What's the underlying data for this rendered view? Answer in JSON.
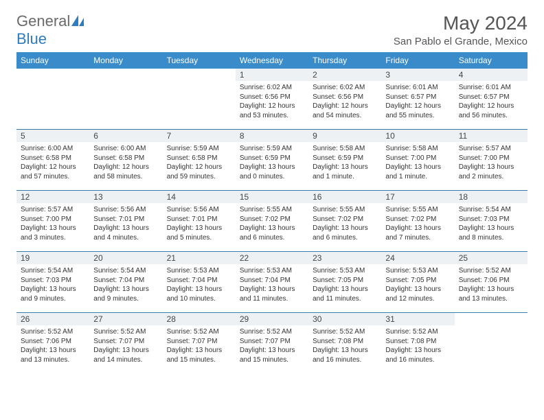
{
  "brand": {
    "part1": "General",
    "part2": "Blue"
  },
  "title": "May 2024",
  "location": "San Pablo el Grande, Mexico",
  "header_bg": "#3a8bc9",
  "daynum_bg": "#eef1f3",
  "rule_color": "#3a7aa8",
  "columns": [
    "Sunday",
    "Monday",
    "Tuesday",
    "Wednesday",
    "Thursday",
    "Friday",
    "Saturday"
  ],
  "weeks": [
    [
      null,
      null,
      null,
      {
        "n": "1",
        "sr": "6:02 AM",
        "ss": "6:56 PM",
        "dl": "12 hours and 53 minutes."
      },
      {
        "n": "2",
        "sr": "6:02 AM",
        "ss": "6:56 PM",
        "dl": "12 hours and 54 minutes."
      },
      {
        "n": "3",
        "sr": "6:01 AM",
        "ss": "6:57 PM",
        "dl": "12 hours and 55 minutes."
      },
      {
        "n": "4",
        "sr": "6:01 AM",
        "ss": "6:57 PM",
        "dl": "12 hours and 56 minutes."
      }
    ],
    [
      {
        "n": "5",
        "sr": "6:00 AM",
        "ss": "6:58 PM",
        "dl": "12 hours and 57 minutes."
      },
      {
        "n": "6",
        "sr": "6:00 AM",
        "ss": "6:58 PM",
        "dl": "12 hours and 58 minutes."
      },
      {
        "n": "7",
        "sr": "5:59 AM",
        "ss": "6:58 PM",
        "dl": "12 hours and 59 minutes."
      },
      {
        "n": "8",
        "sr": "5:59 AM",
        "ss": "6:59 PM",
        "dl": "13 hours and 0 minutes."
      },
      {
        "n": "9",
        "sr": "5:58 AM",
        "ss": "6:59 PM",
        "dl": "13 hours and 1 minute."
      },
      {
        "n": "10",
        "sr": "5:58 AM",
        "ss": "7:00 PM",
        "dl": "13 hours and 1 minute."
      },
      {
        "n": "11",
        "sr": "5:57 AM",
        "ss": "7:00 PM",
        "dl": "13 hours and 2 minutes."
      }
    ],
    [
      {
        "n": "12",
        "sr": "5:57 AM",
        "ss": "7:00 PM",
        "dl": "13 hours and 3 minutes."
      },
      {
        "n": "13",
        "sr": "5:56 AM",
        "ss": "7:01 PM",
        "dl": "13 hours and 4 minutes."
      },
      {
        "n": "14",
        "sr": "5:56 AM",
        "ss": "7:01 PM",
        "dl": "13 hours and 5 minutes."
      },
      {
        "n": "15",
        "sr": "5:55 AM",
        "ss": "7:02 PM",
        "dl": "13 hours and 6 minutes."
      },
      {
        "n": "16",
        "sr": "5:55 AM",
        "ss": "7:02 PM",
        "dl": "13 hours and 6 minutes."
      },
      {
        "n": "17",
        "sr": "5:55 AM",
        "ss": "7:02 PM",
        "dl": "13 hours and 7 minutes."
      },
      {
        "n": "18",
        "sr": "5:54 AM",
        "ss": "7:03 PM",
        "dl": "13 hours and 8 minutes."
      }
    ],
    [
      {
        "n": "19",
        "sr": "5:54 AM",
        "ss": "7:03 PM",
        "dl": "13 hours and 9 minutes."
      },
      {
        "n": "20",
        "sr": "5:54 AM",
        "ss": "7:04 PM",
        "dl": "13 hours and 9 minutes."
      },
      {
        "n": "21",
        "sr": "5:53 AM",
        "ss": "7:04 PM",
        "dl": "13 hours and 10 minutes."
      },
      {
        "n": "22",
        "sr": "5:53 AM",
        "ss": "7:04 PM",
        "dl": "13 hours and 11 minutes."
      },
      {
        "n": "23",
        "sr": "5:53 AM",
        "ss": "7:05 PM",
        "dl": "13 hours and 11 minutes."
      },
      {
        "n": "24",
        "sr": "5:53 AM",
        "ss": "7:05 PM",
        "dl": "13 hours and 12 minutes."
      },
      {
        "n": "25",
        "sr": "5:52 AM",
        "ss": "7:06 PM",
        "dl": "13 hours and 13 minutes."
      }
    ],
    [
      {
        "n": "26",
        "sr": "5:52 AM",
        "ss": "7:06 PM",
        "dl": "13 hours and 13 minutes."
      },
      {
        "n": "27",
        "sr": "5:52 AM",
        "ss": "7:07 PM",
        "dl": "13 hours and 14 minutes."
      },
      {
        "n": "28",
        "sr": "5:52 AM",
        "ss": "7:07 PM",
        "dl": "13 hours and 15 minutes."
      },
      {
        "n": "29",
        "sr": "5:52 AM",
        "ss": "7:07 PM",
        "dl": "13 hours and 15 minutes."
      },
      {
        "n": "30",
        "sr": "5:52 AM",
        "ss": "7:08 PM",
        "dl": "13 hours and 16 minutes."
      },
      {
        "n": "31",
        "sr": "5:52 AM",
        "ss": "7:08 PM",
        "dl": "13 hours and 16 minutes."
      },
      null
    ]
  ]
}
